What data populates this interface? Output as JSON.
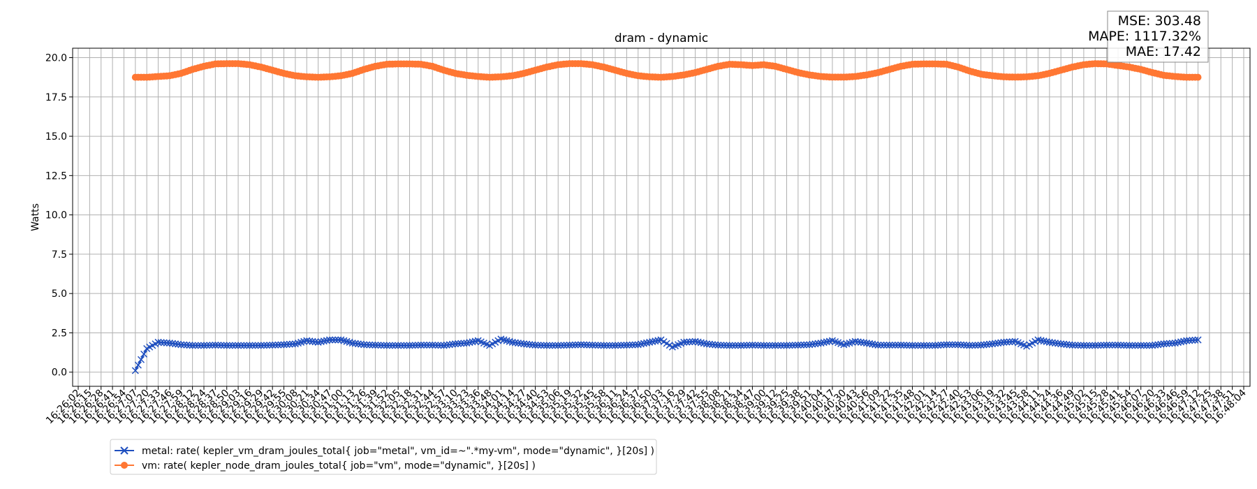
{
  "chart_data": {
    "type": "line",
    "title": "dram - dynamic",
    "xlabel": "",
    "ylabel": "Watts",
    "ylim": [
      -0.9,
      20.6
    ],
    "yticks": [
      0.0,
      2.5,
      5.0,
      7.5,
      10.0,
      12.5,
      15.0,
      17.5,
      20.0
    ],
    "ytick_labels": [
      "0.0",
      "2.5",
      "5.0",
      "7.5",
      "10.0",
      "12.5",
      "15.0",
      "17.5",
      "20.0"
    ],
    "grid": true,
    "legend_position": "bottom-left",
    "x": [
      "16:26:02",
      "16:26:15",
      "16:26:28",
      "16:26:41",
      "16:26:54",
      "16:27:07",
      "16:27:20",
      "16:27:33",
      "16:27:46",
      "16:27:59",
      "16:28:12",
      "16:28:24",
      "16:28:37",
      "16:28:50",
      "16:29:03",
      "16:29:16",
      "16:29:29",
      "16:29:42",
      "16:29:55",
      "16:30:08",
      "16:30:21",
      "16:30:34",
      "16:30:47",
      "16:31:00",
      "16:31:13",
      "16:31:26",
      "16:31:39",
      "16:31:52",
      "16:32:05",
      "16:32:18",
      "16:32:31",
      "16:32:44",
      "16:32:57",
      "16:33:10",
      "16:33:23",
      "16:33:36",
      "16:33:48",
      "16:34:01",
      "16:34:14",
      "16:34:27",
      "16:34:40",
      "16:34:53",
      "16:35:06",
      "16:35:19",
      "16:35:32",
      "16:35:45",
      "16:35:58",
      "16:36:11",
      "16:36:24",
      "16:36:37",
      "16:36:50",
      "16:37:03",
      "16:37:16",
      "16:37:29",
      "16:37:42",
      "16:37:55",
      "16:38:08",
      "16:38:21",
      "16:38:34",
      "16:38:47",
      "16:39:00",
      "16:39:12",
      "16:39:25",
      "16:39:38",
      "16:39:51",
      "16:40:04",
      "16:40:17",
      "16:40:30",
      "16:40:43",
      "16:40:56",
      "16:41:09",
      "16:41:22",
      "16:41:35",
      "16:41:48",
      "16:42:01",
      "16:42:14",
      "16:42:27",
      "16:42:40",
      "16:42:53",
      "16:43:06",
      "16:43:19",
      "16:43:32",
      "16:43:45",
      "16:43:58",
      "16:44:11",
      "16:44:24",
      "16:44:36",
      "16:44:49",
      "16:45:02",
      "16:45:15",
      "16:45:28",
      "16:45:41",
      "16:45:54",
      "16:46:07",
      "16:46:20",
      "16:46:33",
      "16:46:46",
      "16:46:59",
      "16:47:12",
      "16:47:25",
      "16:47:38",
      "16:47:51",
      "16:48:04"
    ],
    "series": [
      {
        "name": "metal: rate( kepler_vm_dram_joules_total{ job=\"metal\", vm_id=~\".*my-vm\", mode=\"dynamic\", }[20s] )",
        "color": "#1f4fbf",
        "marker": "x",
        "values": [
          null,
          null,
          null,
          null,
          null,
          0.1,
          1.5,
          1.9,
          1.85,
          1.75,
          1.7,
          1.7,
          1.72,
          1.7,
          1.7,
          1.7,
          1.7,
          1.72,
          1.75,
          1.8,
          2.0,
          1.9,
          2.05,
          2.05,
          1.85,
          1.75,
          1.72,
          1.7,
          1.7,
          1.7,
          1.72,
          1.72,
          1.7,
          1.8,
          1.85,
          2.0,
          1.7,
          2.1,
          1.9,
          1.8,
          1.72,
          1.7,
          1.7,
          1.72,
          1.75,
          1.72,
          1.7,
          1.7,
          1.72,
          1.75,
          1.9,
          2.05,
          1.6,
          1.9,
          1.95,
          1.8,
          1.72,
          1.7,
          1.7,
          1.72,
          1.7,
          1.7,
          1.7,
          1.72,
          1.75,
          1.85,
          2.0,
          1.75,
          1.95,
          1.85,
          1.72,
          1.72,
          1.72,
          1.7,
          1.7,
          1.7,
          1.75,
          1.75,
          1.7,
          1.72,
          1.8,
          1.9,
          1.95,
          1.65,
          2.05,
          1.9,
          1.8,
          1.72,
          1.7,
          1.7,
          1.72,
          1.72,
          1.7,
          1.7,
          1.7,
          1.8,
          1.85,
          2.0,
          2.05,
          null,
          null,
          null,
          null
        ]
      },
      {
        "name": "vm: rate( kepler_node_dram_joules_total{ job=\"vm\", mode=\"dynamic\", }[20s] )",
        "color": "#ff7733",
        "marker": "o",
        "values": [
          null,
          null,
          null,
          null,
          null,
          18.75,
          18.75,
          18.8,
          18.85,
          19.0,
          19.25,
          19.45,
          19.6,
          19.62,
          19.62,
          19.55,
          19.4,
          19.2,
          19.0,
          18.85,
          18.78,
          18.75,
          18.78,
          18.85,
          19.0,
          19.25,
          19.45,
          19.58,
          19.6,
          19.6,
          19.58,
          19.45,
          19.2,
          19.0,
          18.88,
          18.8,
          18.75,
          18.78,
          18.85,
          19.0,
          19.2,
          19.4,
          19.55,
          19.62,
          19.62,
          19.55,
          19.4,
          19.2,
          19.0,
          18.85,
          18.78,
          18.75,
          18.8,
          18.9,
          19.05,
          19.25,
          19.45,
          19.58,
          19.55,
          19.5,
          19.55,
          19.45,
          19.25,
          19.05,
          18.9,
          18.8,
          18.76,
          18.76,
          18.8,
          18.9,
          19.05,
          19.25,
          19.45,
          19.58,
          19.6,
          19.6,
          19.58,
          19.4,
          19.15,
          18.95,
          18.85,
          18.78,
          18.76,
          18.78,
          18.85,
          19.0,
          19.2,
          19.4,
          19.55,
          19.62,
          19.6,
          19.5,
          19.4,
          19.25,
          19.05,
          18.88,
          18.8,
          18.75,
          18.75,
          null,
          null,
          null,
          null
        ]
      }
    ],
    "stats_box": [
      "MSE: 303.48",
      "MAPE: 1117.32%",
      "MAE: 17.42"
    ]
  }
}
